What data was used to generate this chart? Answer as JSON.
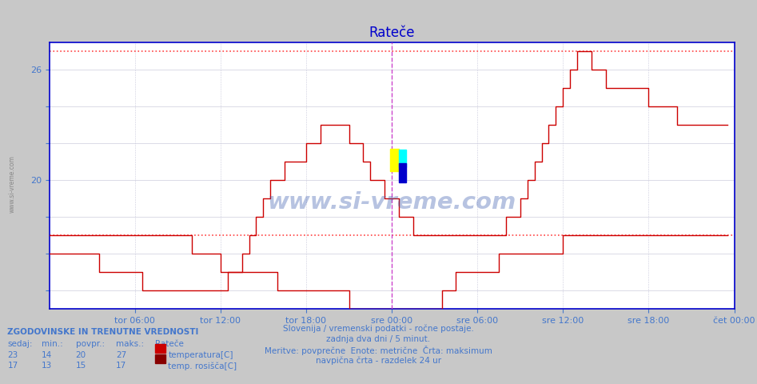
{
  "title": "Rateče",
  "title_color": "#0000cc",
  "bg_color": "#c8c8c8",
  "plot_bg_color": "#ffffff",
  "grid_color": "#ddddee",
  "line_color_temp": "#cc0000",
  "line_color_dew": "#cc0000",
  "dashed_hline_color": "#ff4444",
  "vline_color": "#cc44cc",
  "axis_color": "#0000cc",
  "text_color": "#4477cc",
  "ylim": [
    13.0,
    27.5
  ],
  "ytick_positions": [
    14,
    16,
    18,
    20,
    22,
    24,
    26
  ],
  "ytick_labels": [
    "",
    "",
    "",
    "20",
    "",
    "",
    "26"
  ],
  "hline_max": 27.0,
  "hline_min": 17.0,
  "vline_x": 24,
  "xtick_positions": [
    6,
    12,
    18,
    24,
    30,
    36,
    42,
    48
  ],
  "xtick_labels": [
    "tor 06:00",
    "tor 12:00",
    "tor 18:00",
    "sre 00:00",
    "sre 06:00",
    "sre 12:00",
    "sre 18:00",
    "čet 00:00"
  ],
  "total_hours": 48,
  "watermark_text": "www.si-vreme.com",
  "subtitle_lines": [
    "Slovenija / vremenski podatki - ročne postaje.",
    "zadnja dva dni / 5 minut.",
    "Meritve: povprečne  Enote: metrične  Črta: maksimum",
    "navpična črta - razdelek 24 ur"
  ],
  "legend_title": "ZGODOVINSKE IN TRENUTNE VREDNOSTI",
  "legend_headers": [
    "sedaj:",
    "min.:",
    "povpr.:",
    "maks.:",
    "Rateče"
  ],
  "legend_row1": [
    "23",
    "14",
    "20",
    "27",
    "temperatura[C]"
  ],
  "legend_row2": [
    "17",
    "13",
    "15",
    "17",
    "temp. rosišča[C]"
  ],
  "legend_color1": "#cc0000",
  "legend_color2": "#880000",
  "temp_data_x": [
    0,
    0.5,
    1,
    1.5,
    2,
    2.5,
    3,
    3.5,
    4,
    4.5,
    5,
    5.5,
    6,
    6.5,
    7,
    7.5,
    8,
    8.5,
    9,
    9.5,
    10,
    10.5,
    11,
    11.5,
    12,
    12.5,
    13,
    13.5,
    14,
    14.5,
    15,
    15.5,
    16,
    16.5,
    17,
    17.5,
    18,
    18.5,
    19,
    19.5,
    20,
    20.5,
    21,
    21.5,
    22,
    22.5,
    23,
    23.5,
    24,
    24.5,
    25,
    25.5,
    26,
    26.5,
    27,
    27.5,
    28,
    28.5,
    29,
    29.5,
    30,
    30.5,
    31,
    31.5,
    32,
    32.5,
    33,
    33.5,
    34,
    34.5,
    35,
    35.5,
    36,
    36.5,
    37,
    37.5,
    38,
    38.5,
    39,
    39.5,
    40,
    40.5,
    41,
    41.5,
    42,
    42.5,
    43,
    43.5,
    44,
    44.5,
    45,
    45.5,
    46,
    46.5,
    47,
    47.5
  ],
  "temp_data_y": [
    16,
    16,
    16,
    16,
    16,
    16,
    16,
    15,
    15,
    15,
    15,
    15,
    15,
    14,
    14,
    14,
    14,
    14,
    14,
    14,
    14,
    14,
    14,
    14,
    14,
    15,
    15,
    16,
    17,
    18,
    19,
    20,
    20,
    21,
    21,
    21,
    22,
    22,
    23,
    23,
    23,
    23,
    22,
    22,
    21,
    20,
    20,
    19,
    19,
    18,
    18,
    17,
    17,
    17,
    17,
    17,
    17,
    17,
    17,
    17,
    17,
    17,
    17,
    17,
    18,
    18,
    19,
    20,
    21,
    22,
    23,
    24,
    25,
    26,
    27,
    27,
    26,
    26,
    25,
    25,
    25,
    25,
    25,
    25,
    24,
    24,
    24,
    24,
    23,
    23,
    23,
    23,
    23,
    23,
    23,
    23
  ],
  "dew_data_y": [
    17,
    17,
    17,
    17,
    17,
    17,
    17,
    17,
    17,
    17,
    17,
    17,
    17,
    17,
    17,
    17,
    17,
    17,
    17,
    17,
    16,
    16,
    16,
    16,
    15,
    15,
    15,
    15,
    15,
    15,
    15,
    15,
    14,
    14,
    14,
    14,
    14,
    14,
    14,
    14,
    14,
    14,
    13,
    13,
    13,
    13,
    13,
    13,
    13,
    13,
    13,
    13,
    13,
    13,
    13,
    14,
    14,
    15,
    15,
    15,
    15,
    15,
    15,
    16,
    16,
    16,
    16,
    16,
    16,
    16,
    16,
    16,
    17,
    17,
    17,
    17,
    17,
    17,
    17,
    17,
    17,
    17,
    17,
    17,
    17,
    17,
    17,
    17,
    17,
    17,
    17,
    17,
    17,
    17,
    17,
    17
  ]
}
